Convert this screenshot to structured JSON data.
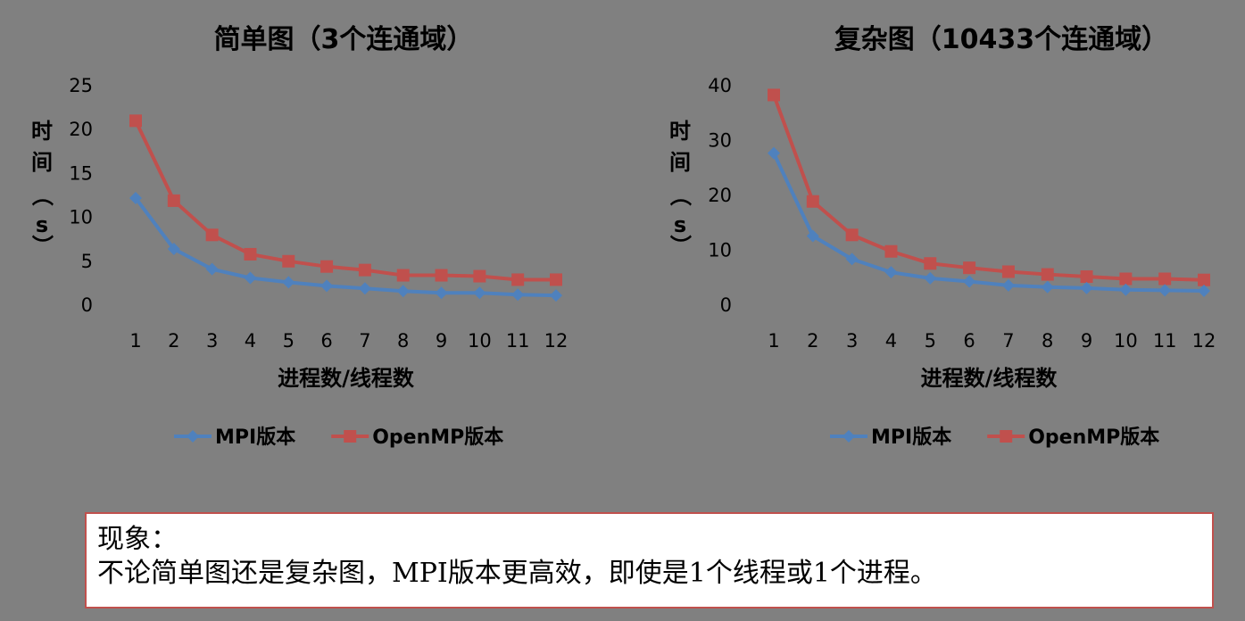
{
  "chart_data": [
    {
      "type": "line",
      "title": "简单图（3个连通域）",
      "xlabel": "进程数/线程数",
      "ylabel": "时间（s）",
      "categories": [
        "1",
        "2",
        "3",
        "4",
        "5",
        "6",
        "7",
        "8",
        "9",
        "10",
        "11",
        "12"
      ],
      "ylim": [
        0,
        25
      ],
      "yticks": [
        0,
        5,
        10,
        15,
        20,
        25
      ],
      "legend_position": "bottom",
      "series": [
        {
          "name": "MPI版本",
          "color": "#4f81bd",
          "marker": "diamond",
          "values": [
            12.2,
            6.4,
            4.1,
            3.1,
            2.6,
            2.2,
            1.9,
            1.6,
            1.4,
            1.4,
            1.2,
            1.1
          ]
        },
        {
          "name": "OpenMP版本",
          "color": "#c0504d",
          "marker": "square",
          "values": [
            21.0,
            11.9,
            8.0,
            5.8,
            5.0,
            4.4,
            4.0,
            3.4,
            3.4,
            3.3,
            2.9,
            2.9
          ]
        }
      ]
    },
    {
      "type": "line",
      "title": "复杂图（10433个连通域）",
      "xlabel": "进程数/线程数",
      "ylabel": "时间（s）",
      "categories": [
        "1",
        "2",
        "3",
        "4",
        "5",
        "6",
        "7",
        "8",
        "9",
        "10",
        "11",
        "12"
      ],
      "ylim": [
        0,
        40
      ],
      "yticks": [
        0,
        10,
        20,
        30,
        40
      ],
      "legend_position": "bottom",
      "series": [
        {
          "name": "MPI版本",
          "color": "#4f81bd",
          "marker": "diamond",
          "values": [
            27.7,
            12.6,
            8.4,
            6.0,
            4.9,
            4.3,
            3.6,
            3.3,
            3.1,
            2.8,
            2.7,
            2.6
          ]
        },
        {
          "name": "OpenMP版本",
          "color": "#c0504d",
          "marker": "square",
          "values": [
            38.3,
            18.9,
            12.8,
            9.8,
            7.6,
            6.8,
            6.1,
            5.6,
            5.2,
            4.8,
            4.8,
            4.6
          ]
        }
      ]
    }
  ],
  "note": {
    "heading": "现象：",
    "body": "不论简单图还是复杂图，MPI版本更高效，即使是1个线程或1个进程。"
  }
}
